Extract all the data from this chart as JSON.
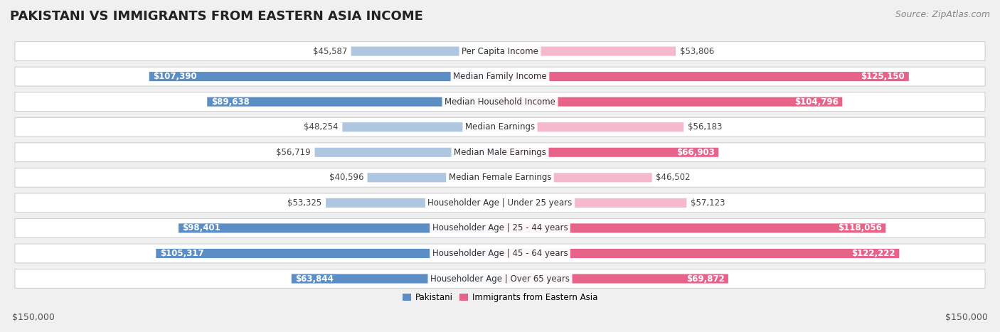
{
  "title": "PAKISTANI VS IMMIGRANTS FROM EASTERN ASIA INCOME",
  "source": "Source: ZipAtlas.com",
  "categories": [
    "Per Capita Income",
    "Median Family Income",
    "Median Household Income",
    "Median Earnings",
    "Median Male Earnings",
    "Median Female Earnings",
    "Householder Age | Under 25 years",
    "Householder Age | 25 - 44 years",
    "Householder Age | 45 - 64 years",
    "Householder Age | Over 65 years"
  ],
  "pakistani_values": [
    45587,
    107390,
    89638,
    48254,
    56719,
    40596,
    53325,
    98401,
    105317,
    63844
  ],
  "eastern_asia_values": [
    53806,
    125150,
    104796,
    56183,
    66903,
    46502,
    57123,
    118056,
    122222,
    69872
  ],
  "pakistani_labels": [
    "$45,587",
    "$107,390",
    "$89,638",
    "$48,254",
    "$56,719",
    "$40,596",
    "$53,325",
    "$98,401",
    "$105,317",
    "$63,844"
  ],
  "eastern_asia_labels": [
    "$53,806",
    "$125,150",
    "$104,796",
    "$56,183",
    "$66,903",
    "$46,502",
    "$57,123",
    "$118,056",
    "$122,222",
    "$69,872"
  ],
  "pakistani_color_light": "#afc6e0",
  "pakistani_color_dark": "#5b8ec4",
  "eastern_asia_color_light": "#f5b8cc",
  "eastern_asia_color_dark": "#e8638a",
  "max_value": 150000,
  "background_color": "#f0f0f0",
  "row_bg_color": "#ffffff",
  "row_border_color": "#d0d0d0",
  "legend_pakistani": "Pakistani",
  "legend_eastern_asia": "Immigrants from Eastern Asia",
  "axis_label_left": "$150,000",
  "axis_label_right": "$150,000",
  "label_threshold": 60000,
  "title_fontsize": 13,
  "source_fontsize": 9,
  "label_fontsize": 8.5,
  "cat_fontsize": 8.5,
  "axis_fontsize": 9
}
